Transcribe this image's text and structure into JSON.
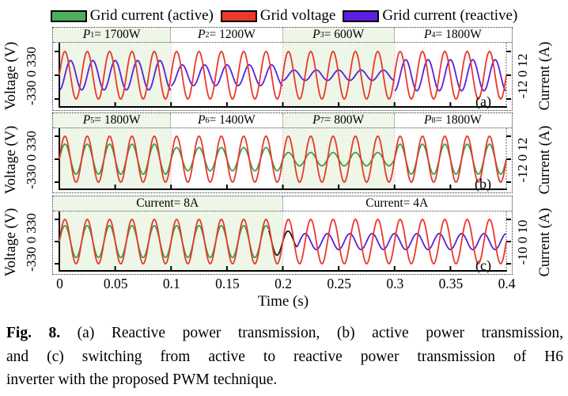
{
  "legend": {
    "items": [
      {
        "name": "grid-current-active",
        "label": "Grid current (active)",
        "color": "#4cae5c"
      },
      {
        "name": "grid-voltage",
        "label": "Grid voltage",
        "color": "#e8392b"
      },
      {
        "name": "grid-current-reactive",
        "label": "Grid current (reactive)",
        "color": "#5a1fe0"
      }
    ]
  },
  "chart_data": {
    "type": "line",
    "frequency_hz": 50,
    "time_range_s": [
      0,
      0.4
    ],
    "voltage_amplitude_v": 330,
    "xaxis": {
      "title": "Time (s)",
      "ticks": [
        "0",
        "0.05",
        "0.1",
        "0.15",
        "0.2",
        "0.25",
        "0.3",
        "0.35",
        "0.4"
      ],
      "values": [
        0,
        0.05,
        0.1,
        0.15,
        0.2,
        0.25,
        0.3,
        0.35,
        0.4
      ]
    },
    "colors": {
      "voltage": "#e8392b",
      "active_current": "#3f9f48",
      "reactive_current": "#5a20dd",
      "transition": "#1a1a1a",
      "shade": "#edf6e7",
      "separator": "#f0a2ee"
    },
    "panels": [
      {
        "key": "a",
        "letter": "(a)",
        "description": "Reactive power transmission",
        "left_label": "Voltage (V)",
        "left_ticks": "-330 0 330",
        "right_label": "Current (A)",
        "right_ticks": "-12 0 12",
        "current_type": "reactive",
        "current_axis_max_a": 12,
        "segments": [
          {
            "main": "P",
            "sub": "1",
            "rest": " = 1700W",
            "italic": true,
            "power_w": 1700,
            "t0": 0.0,
            "t1": 0.1,
            "shaded": true
          },
          {
            "main": "P",
            "sub": "2",
            "rest": " = 1200W",
            "italic": true,
            "power_w": 1200,
            "t0": 0.1,
            "t1": 0.2,
            "shaded": false
          },
          {
            "main": "P",
            "sub": "3",
            "rest": " = 600W",
            "italic": true,
            "power_w": 600,
            "t0": 0.2,
            "t1": 0.3,
            "shaded": true
          },
          {
            "main": "P",
            "sub": "4",
            "rest": " = 1800W",
            "italic": true,
            "power_w": 1800,
            "t0": 0.3,
            "t1": 0.4,
            "shaded": false
          }
        ]
      },
      {
        "key": "b",
        "letter": "(b)",
        "description": "Active power transmission",
        "left_label": "Voltage (V)",
        "left_ticks": "-330 0 330",
        "right_label": "Current (A)",
        "right_ticks": "-12 0 12",
        "current_type": "active",
        "current_axis_max_a": 12,
        "segments": [
          {
            "main": "P",
            "sub": "5",
            "rest": " = 1800W",
            "italic": true,
            "power_w": 1800,
            "t0": 0.0,
            "t1": 0.1,
            "shaded": true
          },
          {
            "main": "P",
            "sub": "6",
            "rest": " = 1400W",
            "italic": true,
            "power_w": 1400,
            "t0": 0.1,
            "t1": 0.2,
            "shaded": false
          },
          {
            "main": "P",
            "sub": "7",
            "rest": " = 800W",
            "italic": true,
            "power_w": 800,
            "t0": 0.2,
            "t1": 0.3,
            "shaded": true
          },
          {
            "main": "P",
            "sub": "8",
            "rest": " = 1800W",
            "italic": true,
            "power_w": 1800,
            "t0": 0.3,
            "t1": 0.4,
            "shaded": false
          }
        ]
      },
      {
        "key": "c",
        "letter": "(c)",
        "description": "Switching from active to reactive power transmission",
        "left_label": "Voltage (V)",
        "left_ticks": "-330 0 330",
        "right_label": "Current (A)",
        "right_ticks": "-10 0 10",
        "current_type": "switch",
        "current_axis_max_a": 10,
        "transition": {
          "start_s": 0.1875,
          "end_s": 0.2125
        },
        "segments": [
          {
            "main": "Current",
            "sub": "",
            "rest": " = 8A",
            "italic": false,
            "current_a": 8,
            "t0": 0.0,
            "t1": 0.2,
            "shaded": true
          },
          {
            "main": "Current",
            "sub": "",
            "rest": " = 4A",
            "italic": false,
            "current_a": 4,
            "t0": 0.2,
            "t1": 0.4,
            "shaded": false
          }
        ]
      }
    ]
  },
  "caption": {
    "fig_label": "Fig. 8.",
    "lines": [
      "(a) Reactive power transmission, (b) active power transmission,",
      "and (c) switching from active to reactive power transmission of H6",
      "inverter with the proposed PWM technique."
    ]
  }
}
